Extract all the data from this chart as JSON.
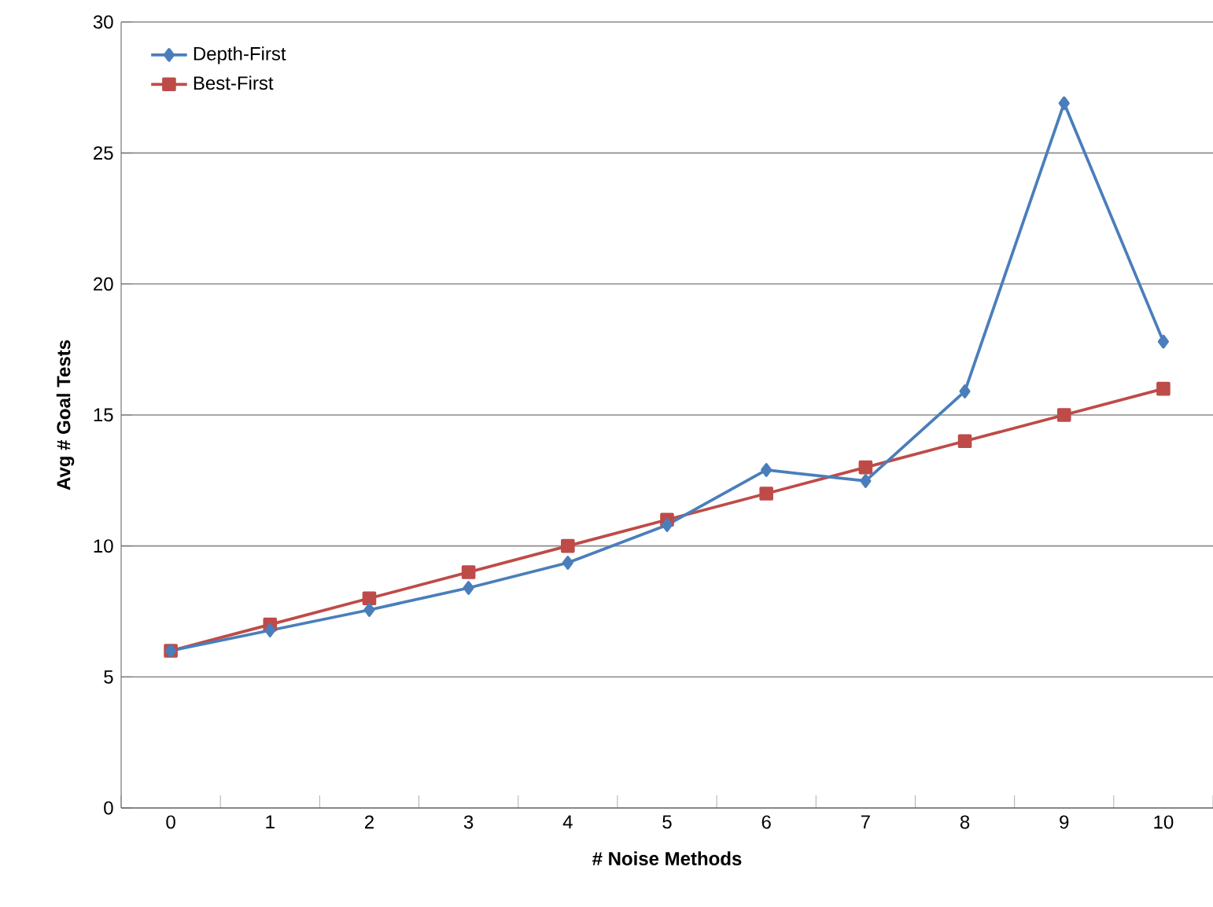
{
  "chart_data": {
    "type": "line",
    "xlabel": "# Noise Methods",
    "ylabel": "Avg # Goal Tests",
    "categories": [
      "0",
      "1",
      "2",
      "3",
      "4",
      "5",
      "6",
      "7",
      "8",
      "9",
      "10"
    ],
    "series": [
      {
        "name": "Depth-First",
        "color": "#4a7ebb",
        "marker": "diamond",
        "values": [
          6,
          6.78,
          7.56,
          8.4,
          9.36,
          10.8,
          12.9,
          12.48,
          15.9,
          26.9,
          17.8
        ]
      },
      {
        "name": "Best-First",
        "color": "#be4b48",
        "marker": "square",
        "values": [
          6,
          7,
          8,
          9,
          10,
          11,
          12,
          13,
          14,
          15,
          16
        ]
      }
    ],
    "ylim": [
      0,
      30
    ],
    "yticks": [
      0,
      5,
      10,
      15,
      20,
      25,
      30
    ],
    "grid": "y",
    "legend": "top left",
    "line_style": "solid"
  }
}
